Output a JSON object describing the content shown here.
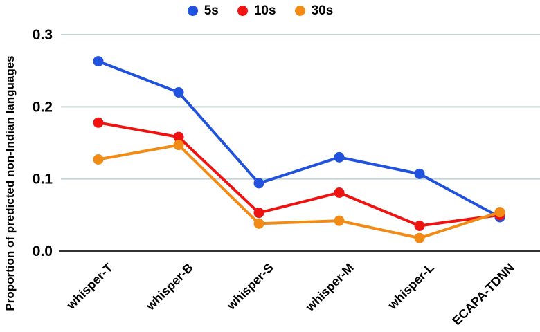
{
  "chart_data": {
    "type": "line",
    "categories": [
      "whisper-T",
      "whisper-B",
      "whisper-S",
      "whisper-M",
      "whisper-L",
      "ECAPA-TDNN"
    ],
    "series": [
      {
        "name": "5s",
        "color": "#2152dd",
        "values": [
          0.263,
          0.22,
          0.094,
          0.13,
          0.107,
          0.047
        ]
      },
      {
        "name": "10s",
        "color": "#ee1310",
        "values": [
          0.178,
          0.158,
          0.053,
          0.081,
          0.035,
          0.05
        ]
      },
      {
        "name": "30s",
        "color": "#f28b16",
        "values": [
          0.127,
          0.147,
          0.038,
          0.042,
          0.018,
          0.054
        ]
      }
    ],
    "title": "",
    "xlabel": "",
    "ylabel": "Proportion of predicted non-Indian languages",
    "ylim": [
      0,
      0.3
    ],
    "yticks": [
      0,
      0.1,
      0.2,
      0.3
    ],
    "ytick_labels": [
      "0.0",
      "0.1",
      "0.2",
      "0.3"
    ],
    "xtick_rotation_deg": -45,
    "grid": true,
    "legend_position": "top",
    "colors": {
      "gridline": "#c4d2d2",
      "axis": "#333333",
      "text": "#000000",
      "background": "#ffffff"
    }
  }
}
